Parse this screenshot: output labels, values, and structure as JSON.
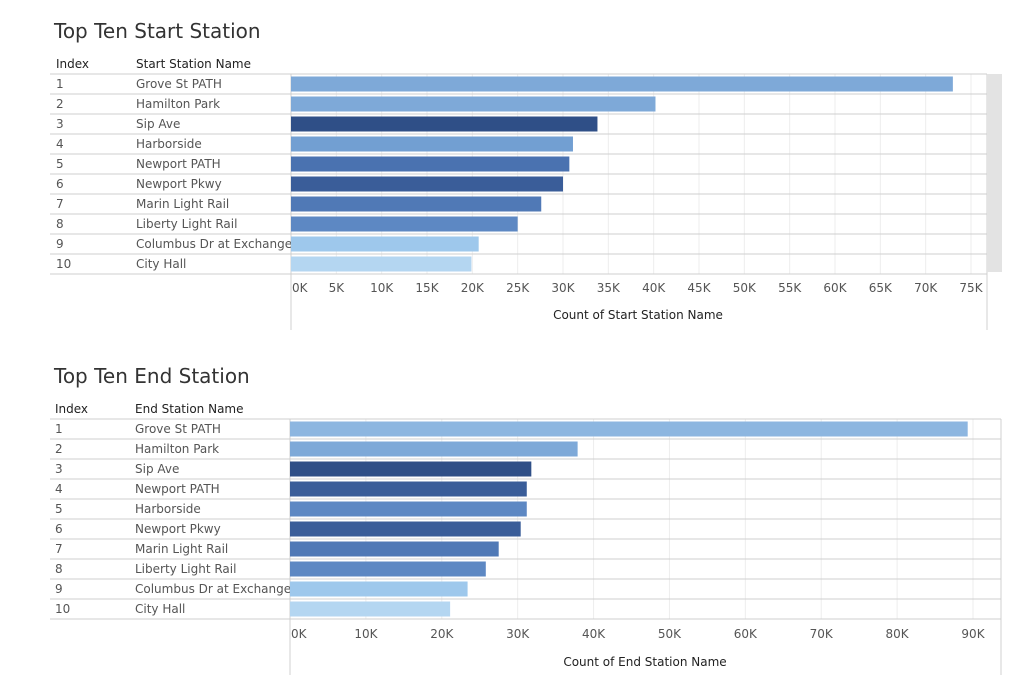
{
  "charts": [
    {
      "title": "Top Ten Start Station",
      "index_header": "Index",
      "name_header": "Start Station Name",
      "axis_label": "Count of Start Station Name"
    },
    {
      "title": "Top Ten End Station",
      "index_header": "Index",
      "name_header": "End Station Name",
      "axis_label": "Count of End Station Name"
    }
  ],
  "chart_data": [
    {
      "type": "bar",
      "orientation": "horizontal",
      "title": "Top Ten Start Station",
      "xlabel": "Count of Start Station Name",
      "xlim": [
        0,
        75000
      ],
      "grid": true,
      "indices": [
        "1",
        "2",
        "3",
        "4",
        "5",
        "6",
        "7",
        "8",
        "9",
        "10"
      ],
      "categories": [
        "Grove St PATH",
        "Hamilton Park",
        "Sip Ave",
        "Harborside",
        "Newport PATH",
        "Newport Pkwy",
        "Marin Light Rail",
        "Liberty Light Rail",
        "Columbus Dr at Exchange ..",
        "City Hall"
      ],
      "values": [
        73000,
        40200,
        33800,
        31100,
        30700,
        30000,
        27600,
        25000,
        20700,
        19900
      ],
      "colors": [
        "#7ea9d8",
        "#7ea9d8",
        "#2f4f87",
        "#729fd2",
        "#4a72b0",
        "#3a5d99",
        "#5079b6",
        "#5d88c3",
        "#9ec8ec",
        "#b4d6f1"
      ],
      "ticks": [
        "0K",
        "5K",
        "10K",
        "15K",
        "20K",
        "25K",
        "30K",
        "35K",
        "40K",
        "45K",
        "50K",
        "55K",
        "60K",
        "65K",
        "70K",
        "75K"
      ]
    },
    {
      "type": "bar",
      "orientation": "horizontal",
      "title": "Top Ten End Station",
      "xlabel": "Count of End Station Name",
      "xlim": [
        0,
        90000
      ],
      "grid": true,
      "indices": [
        "1",
        "2",
        "3",
        "4",
        "5",
        "6",
        "7",
        "8",
        "9",
        "10"
      ],
      "categories": [
        "Grove St PATH",
        "Hamilton Park",
        "Sip Ave",
        "Newport PATH",
        "Harborside",
        "Newport Pkwy",
        "Marin Light Rail",
        "Liberty Light Rail",
        "Columbus Dr at Exchange ..",
        "City Hall"
      ],
      "values": [
        89300,
        37900,
        31800,
        31200,
        31200,
        30400,
        27500,
        25800,
        23400,
        21100
      ],
      "colors": [
        "#8db6e0",
        "#7ea9d8",
        "#2f4f87",
        "#3a5d99",
        "#5d88c3",
        "#3a5d99",
        "#5079b6",
        "#5d88c3",
        "#9ec8ec",
        "#b4d6f1"
      ],
      "ticks": [
        "0K",
        "10K",
        "20K",
        "30K",
        "40K",
        "50K",
        "60K",
        "70K",
        "80K",
        "90K"
      ]
    }
  ]
}
